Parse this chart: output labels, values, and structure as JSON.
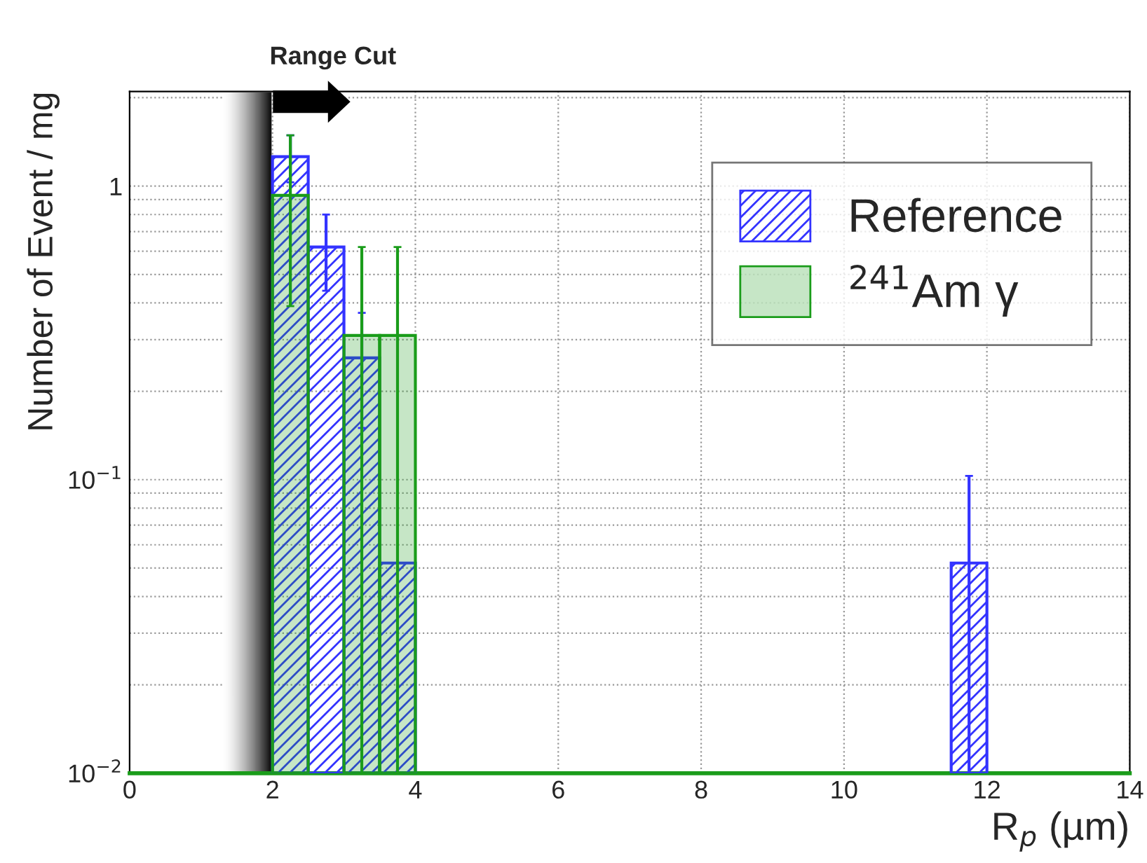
{
  "chart_data": {
    "type": "histogram",
    "title": "Range Cut",
    "xlabel": "R$_{p}$ (µm)",
    "ylabel": "Number of Event / mg",
    "bins": [
      0,
      0.5,
      1,
      1.5,
      2,
      2.5,
      3,
      3.5,
      4,
      4.5,
      5,
      5.5,
      6,
      6.5,
      7,
      7.5,
      8,
      8.5,
      9,
      9.5,
      10,
      10.5,
      11,
      11.5,
      12,
      12.5,
      13,
      13.5,
      14
    ],
    "series": [
      {
        "name": "Reference",
        "color": "#3333ff",
        "values": [
          null,
          null,
          null,
          null,
          1.26,
          0.62,
          0.26,
          0.052,
          null,
          null,
          null,
          null,
          null,
          null,
          null,
          null,
          null,
          null,
          null,
          null,
          null,
          null,
          null,
          0.052,
          null,
          null,
          null,
          null
        ],
        "errors": [
          null,
          null,
          null,
          null,
          0.23,
          [
            0.44,
            0.8
          ],
          0.11,
          null,
          null,
          null,
          null,
          null,
          null,
          null,
          null,
          null,
          null,
          null,
          null,
          null,
          null,
          null,
          null,
          [
            0.01,
            0.103
          ],
          null,
          null,
          null,
          null
        ]
      },
      {
        "name": "$^{241}$Am γ",
        "color": "#1a9c1a",
        "values": [
          null,
          null,
          null,
          null,
          0.93,
          null,
          0.31,
          0.31,
          null,
          null,
          null,
          null,
          null,
          null,
          null,
          null,
          null,
          null,
          null,
          null,
          null,
          null,
          null,
          null,
          null,
          null,
          null,
          null
        ],
        "errors": [
          null,
          null,
          null,
          null,
          [
            0.39,
            1.49
          ],
          null,
          [
            0.01,
            0.62
          ],
          [
            0.01,
            0.62
          ],
          null,
          null,
          null,
          null,
          null,
          null,
          null,
          null,
          null,
          null,
          null,
          null,
          null,
          null,
          null,
          null,
          null,
          null,
          null,
          null
        ]
      }
    ],
    "bands": [
      {
        "axis": "x",
        "from": 1.3,
        "to": 2,
        "color": "#000000"
      }
    ],
    "log": "y",
    "xlim": [
      0,
      14
    ],
    "xticks": [
      0,
      2,
      4,
      6,
      8,
      10,
      12,
      14
    ],
    "ylim": [
      0.01,
      2.1
    ],
    "yticks": [
      {
        "value": 0.01,
        "label": "10$^{−2}$"
      },
      {
        "value": 0.1,
        "label": "10$^{−1}$"
      },
      1
    ],
    "grid": true,
    "legend": "top right"
  }
}
